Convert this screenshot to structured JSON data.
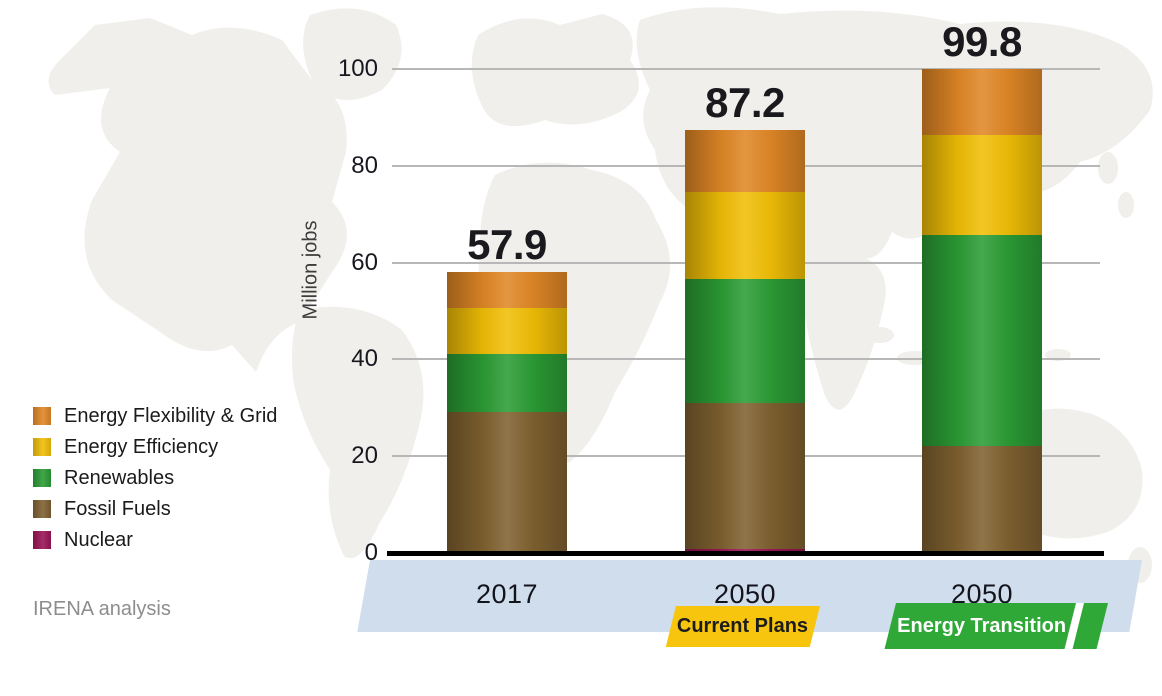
{
  "chart_data": {
    "type": "bar",
    "stacked": true,
    "ylabel": "Million jobs",
    "ylim": [
      0,
      100
    ],
    "yticks": [
      0,
      20,
      40,
      60,
      80,
      100
    ],
    "grid": "horizontal",
    "legend_position": "left",
    "categories": [
      "2017",
      "2050",
      "2050"
    ],
    "totals": [
      57.9,
      87.2,
      99.8
    ],
    "series": [
      {
        "name": "Nuclear",
        "color": "#9B1556",
        "values": [
          0,
          0.7,
          0
        ]
      },
      {
        "name": "Fossil Fuels",
        "color": "#7F6130",
        "values": [
          28.9,
          30.0,
          22.0
        ]
      },
      {
        "name": "Renewables",
        "color": "#2B9C35",
        "values": [
          12.0,
          25.8,
          43.5
        ]
      },
      {
        "name": "Energy Efficiency",
        "color": "#F0BE06",
        "values": [
          9.5,
          17.8,
          20.7
        ]
      },
      {
        "name": "Energy Flexibility & Grid",
        "color": "#E08726",
        "values": [
          7.5,
          12.9,
          13.6
        ]
      }
    ],
    "scenario_tags": [
      {
        "label": "Current Plans",
        "bg": "#F7C40E",
        "text_color": "#1c1c1c"
      },
      {
        "label": "Energy Transition",
        "bg": "#2FA838",
        "text_color": "#ffffff"
      }
    ],
    "band_color": "#CFDDEC",
    "source": "IRENA analysis"
  },
  "legend": {
    "items": [
      {
        "label": "Energy Flexibility & Grid",
        "color": "#E08726"
      },
      {
        "label": "Energy Efficiency",
        "color": "#F0BE06"
      },
      {
        "label": "Renewables",
        "color": "#2B9C35"
      },
      {
        "label": "Fossil Fuels",
        "color": "#7F6130"
      },
      {
        "label": "Nuclear",
        "color": "#9B1556"
      }
    ]
  }
}
